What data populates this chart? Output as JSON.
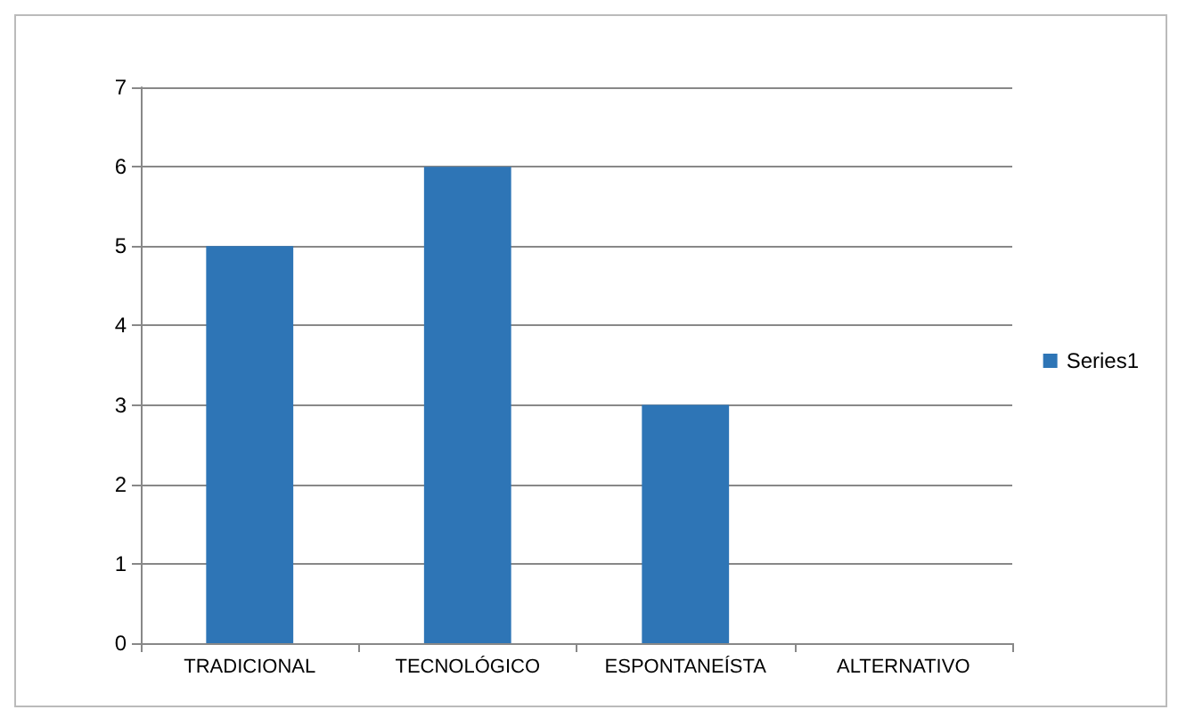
{
  "chart_data": {
    "type": "bar",
    "categories": [
      "TRADICIONAL",
      "TECNOLÓGICO",
      "ESPONTANEÍSTA",
      "ALTERNATIVO"
    ],
    "series": [
      {
        "name": "Series1",
        "color": "#2e75b6",
        "values": [
          5,
          6,
          3,
          0
        ]
      }
    ],
    "ylim": [
      0,
      7
    ],
    "yticks": [
      0,
      1,
      2,
      3,
      4,
      5,
      6,
      7
    ],
    "grid": "y",
    "legend": "right"
  }
}
